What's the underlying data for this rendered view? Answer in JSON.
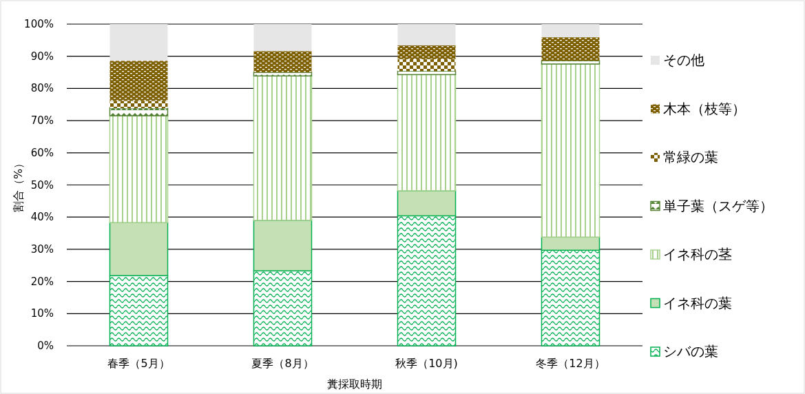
{
  "chart_data": {
    "type": "bar",
    "stacked": true,
    "xlabel": "糞採取時期",
    "ylabel": "割合（%）",
    "categories": [
      "春季（5月）",
      "夏季（8月）",
      "秋季（10月)",
      "冬季（12月）"
    ],
    "series": [
      {
        "name": "シバの葉",
        "color": "#00b050",
        "values": [
          21.8,
          23.3,
          40.4,
          29.7
        ]
      },
      {
        "name": "イネ科の葉",
        "color": "#c5e0b4",
        "values": [
          16.5,
          15.7,
          7.8,
          4.1
        ]
      },
      {
        "name": "イネ科の茎",
        "color": "#a9d18e",
        "values": [
          33.2,
          44.9,
          36.1,
          53.8
        ]
      },
      {
        "name": "単子葉（スゲ等）",
        "color": "#548235",
        "values": [
          2.4,
          1.1,
          1.1,
          1.0
        ]
      },
      {
        "name": "常緑の葉",
        "color": "#7f6000",
        "values": [
          2.2,
          0,
          3.7,
          0
        ]
      },
      {
        "name": "木本（枝等）",
        "color": "#7f6000",
        "values": [
          12.5,
          6.6,
          4.3,
          7.3
        ]
      },
      {
        "name": "その他",
        "color": "#e7e6e6",
        "values": [
          11.4,
          8.4,
          6.6,
          4.1
        ]
      }
    ],
    "ylim": [
      0,
      100
    ],
    "yticks": [
      {
        "value": 0,
        "label": "0%"
      },
      {
        "value": 10,
        "label": "10%"
      },
      {
        "value": 20,
        "label": "20%"
      },
      {
        "value": 30,
        "label": "30%"
      },
      {
        "value": 40,
        "label": "40%"
      },
      {
        "value": 50,
        "label": "50%"
      },
      {
        "value": 60,
        "label": "60%"
      },
      {
        "value": 70,
        "label": "70%"
      },
      {
        "value": 80,
        "label": "80%"
      },
      {
        "value": 90,
        "label": "90%"
      },
      {
        "value": 100,
        "label": "100%"
      }
    ],
    "grid": "y",
    "legend": "right"
  }
}
